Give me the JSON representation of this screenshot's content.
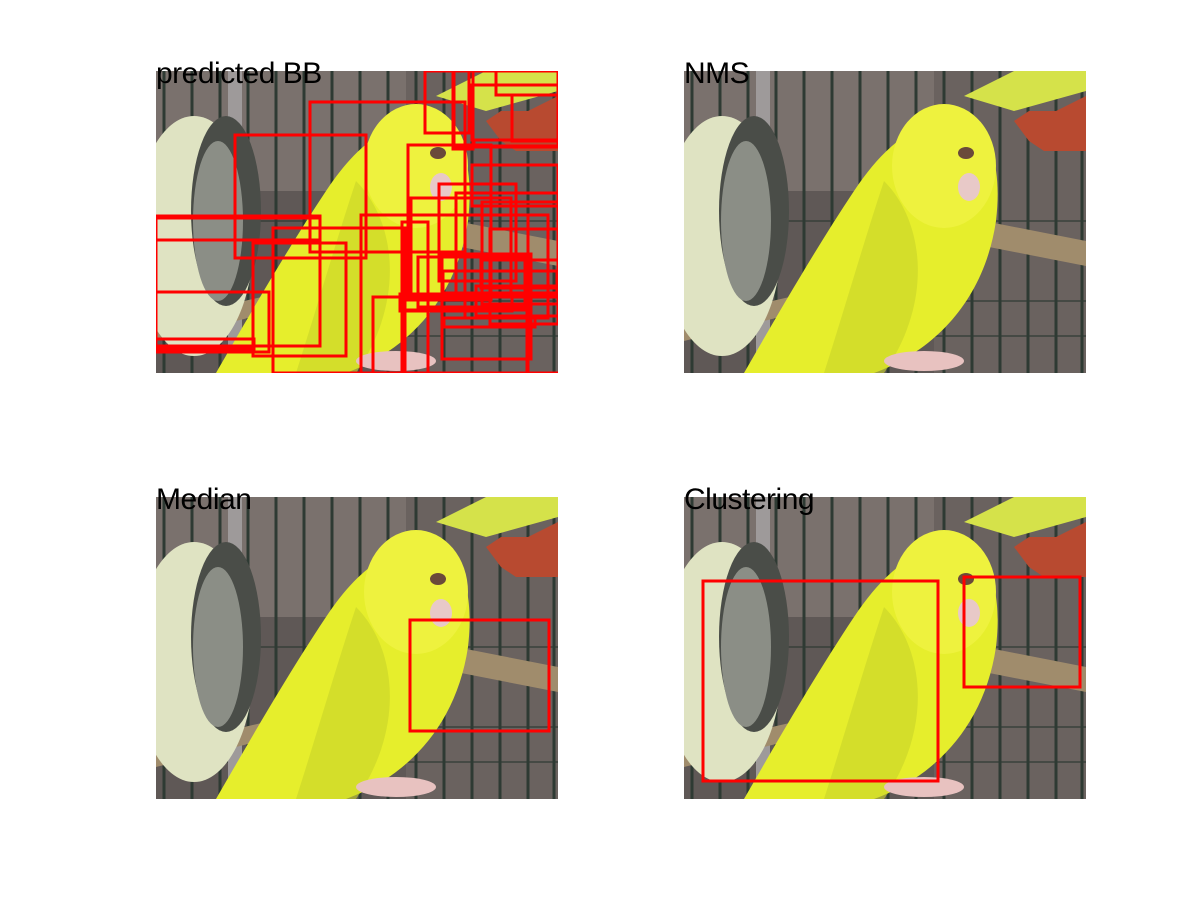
{
  "panels": {
    "predicted": {
      "title": "predicted BB"
    },
    "nms": {
      "title": "NMS"
    },
    "median": {
      "title": "Median"
    },
    "clustering": {
      "title": "Clustering"
    }
  },
  "colors": {
    "box": "#ff0000",
    "bird_yellow": "#e8ef2a",
    "cage_background": "#6b6260",
    "perch": "#a08c6c"
  },
  "scene": {
    "subject": "yellow budgerigar in cage with second budgerigar at left",
    "box_counts": {
      "predicted": 34,
      "nms": 0,
      "median": 1,
      "clustering": 2
    }
  }
}
